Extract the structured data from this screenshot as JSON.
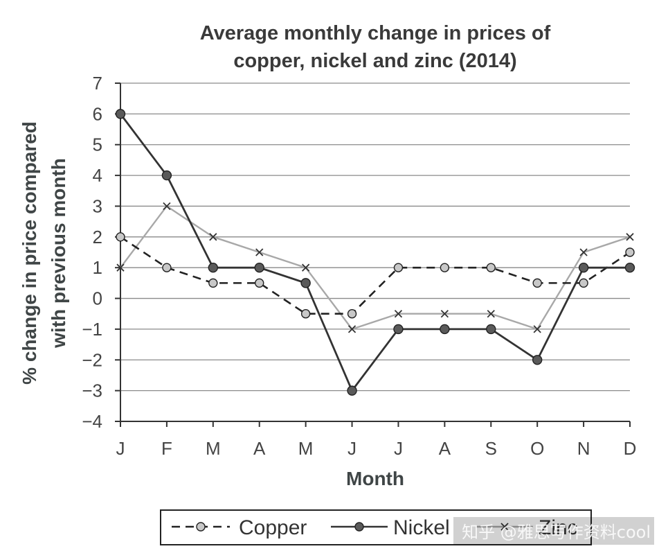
{
  "chart_data": {
    "type": "line",
    "title": [
      "Average monthly change in prices of",
      "copper, nickel and zinc (2014)"
    ],
    "xlabel": "Month",
    "ylabel": [
      "% change in price compared",
      "with previous month"
    ],
    "categories": [
      "J",
      "F",
      "M",
      "A",
      "M",
      "J",
      "J",
      "A",
      "S",
      "O",
      "N",
      "D"
    ],
    "ylim": [
      -4,
      7
    ],
    "yticks": [
      "7",
      "6",
      "5",
      "4",
      "3",
      "2",
      "1",
      "0",
      "−1",
      "−2",
      "−3",
      "−4"
    ],
    "grid": true,
    "legend_position": "bottom",
    "series": [
      {
        "name": "Copper",
        "values": [
          2,
          1,
          0.5,
          0.5,
          -0.5,
          -0.5,
          1,
          1,
          1,
          0.5,
          0.5,
          1.5
        ],
        "style": "dashed",
        "marker": "circle-light",
        "color": "#222222",
        "marker_color": "#c8c8c8"
      },
      {
        "name": "Nickel",
        "values": [
          6,
          4,
          1,
          1,
          0.5,
          -3,
          -1,
          -1,
          -1,
          -2,
          1,
          1
        ],
        "style": "solid",
        "marker": "circle-dark",
        "color": "#333333",
        "marker_color": "#5a5a5a"
      },
      {
        "name": "Zinc",
        "values": [
          1,
          3,
          2,
          1.5,
          1,
          -1,
          -0.5,
          -0.5,
          -0.5,
          -1,
          1.5,
          2
        ],
        "style": "solid",
        "marker": "cross",
        "color": "#a8a8a8",
        "marker_color": "#333333"
      }
    ]
  },
  "watermark": "知乎 @雅思写作资料cool"
}
